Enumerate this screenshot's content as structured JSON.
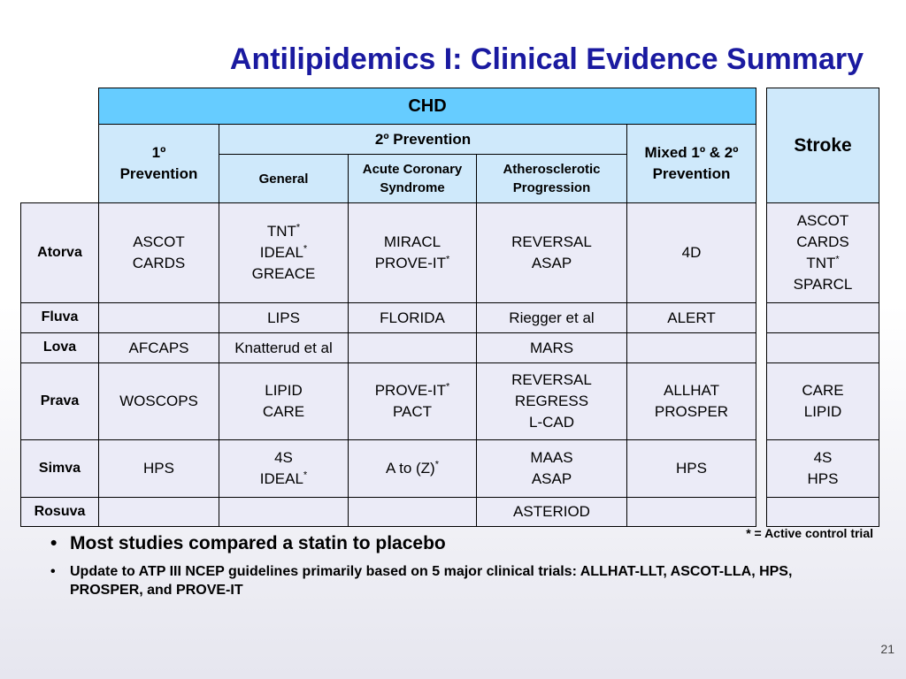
{
  "title": "Antilipidemics I: Clinical Evidence Summary",
  "headers": {
    "chd": "CHD",
    "primary": [
      "1º",
      "Prevention"
    ],
    "secondary": "2º Prevention",
    "general": "General",
    "acs": [
      "Acute Coronary",
      "Syndrome"
    ],
    "athero": [
      "Atherosclerotic",
      "Progression"
    ],
    "mixed": [
      "Mixed 1º & 2º",
      "Prevention"
    ],
    "stroke": "Stroke"
  },
  "rows": [
    {
      "drug": "Atorva",
      "primary": [
        "ASCOT",
        "CARDS"
      ],
      "general": [
        "TNT*",
        "IDEAL*",
        "GREACE"
      ],
      "acs": [
        "MIRACL",
        "PROVE-IT*"
      ],
      "athero": [
        "REVERSAL",
        "ASAP"
      ],
      "mixed": [
        "4D"
      ],
      "stroke": [
        "ASCOT",
        "CARDS",
        "TNT*",
        "SPARCL"
      ]
    },
    {
      "drug": "Fluva",
      "primary": [],
      "general": [
        "LIPS"
      ],
      "acs": [
        "FLORIDA"
      ],
      "athero": [
        "Riegger et al"
      ],
      "mixed": [
        "ALERT"
      ],
      "stroke": []
    },
    {
      "drug": "Lova",
      "primary": [
        "AFCAPS"
      ],
      "general": [
        "Knatterud et al"
      ],
      "acs": [],
      "athero": [
        "MARS"
      ],
      "mixed": [],
      "stroke": []
    },
    {
      "drug": "Prava",
      "primary": [
        "WOSCOPS"
      ],
      "general": [
        "LIPID",
        "CARE"
      ],
      "acs": [
        "PROVE-IT*",
        "PACT"
      ],
      "athero": [
        "REVERSAL",
        "REGRESS",
        "L-CAD"
      ],
      "mixed": [
        "ALLHAT",
        "PROSPER"
      ],
      "stroke": [
        "CARE",
        "LIPID"
      ]
    },
    {
      "drug": "Simva",
      "primary": [
        "HPS"
      ],
      "general": [
        "4S",
        "IDEAL*"
      ],
      "acs": [
        "A to (Z)*"
      ],
      "athero": [
        "MAAS",
        "ASAP"
      ],
      "mixed": [
        "HPS"
      ],
      "stroke": [
        "4S",
        "HPS"
      ]
    },
    {
      "drug": "Rosuva",
      "primary": [],
      "general": [],
      "acs": [],
      "athero": [
        "ASTERIOD"
      ],
      "mixed": [],
      "stroke": []
    }
  ],
  "footnote": "* = Active control trial",
  "bullets": [
    "Most studies compared a statin to placebo",
    "Update to ATP III NCEP guidelines primarily based on 5 major clinical trials: ALLHAT-LLT, ASCOT-LLA, HPS, PROSPER, and PROVE-IT"
  ],
  "page_number": "21"
}
